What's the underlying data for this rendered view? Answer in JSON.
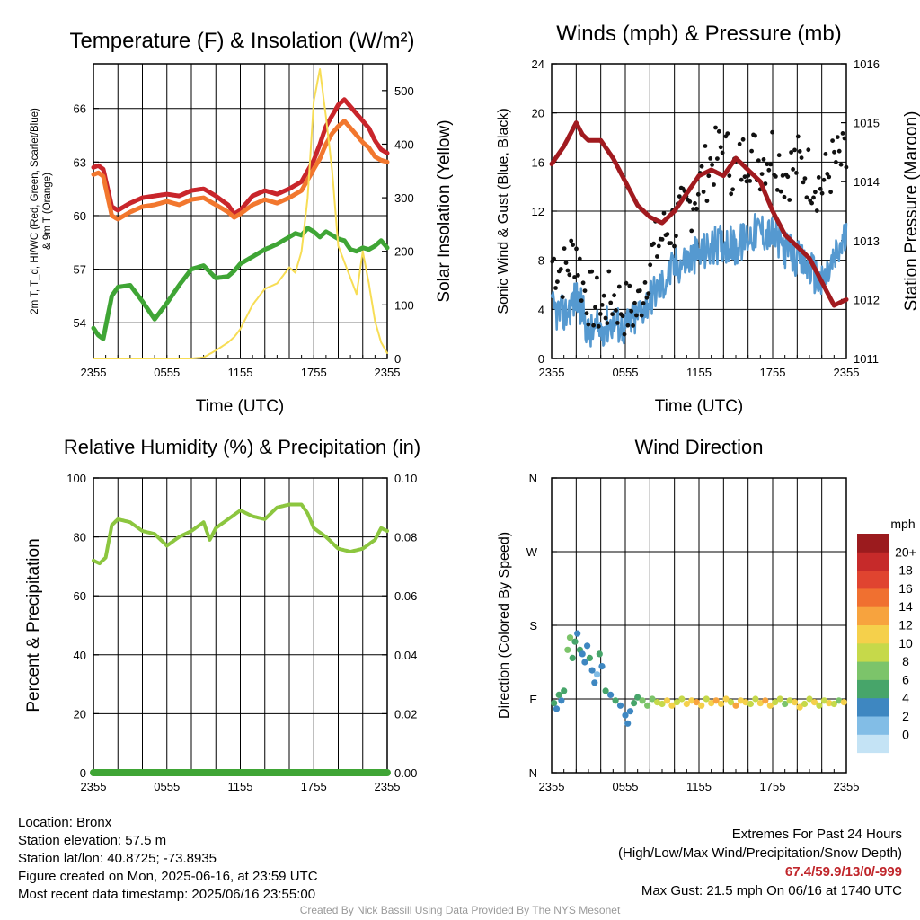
{
  "chart_data": [
    {
      "type": "line",
      "title": "Temperature (F) & Insolation (W/m²)",
      "xlabel": "Time (UTC)",
      "ylabel_left": [
        "2m T, T_d, HI/WC (Red, Green, Scarlet/Blue)",
        "& 9m T (Orange)"
      ],
      "ylabel_right": "Solar Insolation (Yellow)",
      "x_ticks": [
        "2355",
        "0555",
        "1155",
        "1755",
        "2355"
      ],
      "y_ticks_left": [
        54,
        57,
        60,
        63,
        66
      ],
      "y_ticks_right": [
        0,
        100,
        200,
        300,
        400,
        500
      ],
      "ylim_left": [
        52,
        68.5
      ],
      "ylim_right": [
        0,
        550
      ],
      "xlim_hours": [
        0,
        24
      ],
      "grid": true,
      "x_hours": [
        0,
        0.4,
        0.8,
        1.5,
        2,
        3,
        4,
        5,
        6,
        7,
        8,
        9,
        10,
        11,
        11.5,
        12,
        13,
        14,
        15,
        16,
        16.5,
        17,
        17.5,
        18,
        18.5,
        19,
        19.5,
        20,
        20.5,
        21,
        21.5,
        22,
        22.5,
        23,
        23.5,
        24
      ],
      "series": [
        {
          "name": "2m T",
          "color": "#c9252b",
          "values": [
            62.7,
            62.8,
            62.6,
            60.5,
            60.3,
            60.7,
            61.0,
            61.1,
            61.2,
            61.1,
            61.4,
            61.5,
            61.1,
            60.6,
            60.1,
            60.3,
            61.1,
            61.4,
            61.2,
            61.5,
            61.7,
            61.9,
            62.5,
            63.1,
            64.0,
            65.0,
            65.6,
            66.2,
            66.5,
            66.1,
            65.7,
            65.3,
            64.9,
            64.2,
            63.7,
            63.5
          ]
        },
        {
          "name": "9m T",
          "color": "#f2772e",
          "values": [
            62.3,
            62.4,
            62.2,
            60.0,
            59.8,
            60.2,
            60.5,
            60.6,
            60.8,
            60.6,
            60.9,
            61.0,
            60.6,
            60.2,
            59.9,
            60.1,
            60.6,
            60.9,
            60.7,
            61.0,
            61.2,
            61.4,
            62.0,
            62.6,
            63.2,
            64.0,
            64.6,
            65.0,
            65.3,
            64.9,
            64.5,
            64.1,
            63.8,
            63.3,
            63.1,
            63.0
          ]
        },
        {
          "name": "T_d",
          "color": "#3fa535",
          "values": [
            53.7,
            53.3,
            53.1,
            55.5,
            56.0,
            56.1,
            55.2,
            54.2,
            55.1,
            56.1,
            57.0,
            57.2,
            56.5,
            56.6,
            56.9,
            57.3,
            57.7,
            58.1,
            58.4,
            58.8,
            59.0,
            58.9,
            59.3,
            59.1,
            58.8,
            59.1,
            58.9,
            58.7,
            58.6,
            58.1,
            58.0,
            58.2,
            58.1,
            58.3,
            58.6,
            58.2
          ]
        },
        {
          "name": "Solar Insolation",
          "color": "#f7dd55",
          "axis": "right",
          "values": [
            0,
            0,
            0,
            0,
            0,
            0,
            0,
            0,
            0,
            0,
            0,
            2,
            15,
            30,
            40,
            55,
            100,
            130,
            140,
            170,
            160,
            200,
            300,
            480,
            540,
            450,
            350,
            210,
            180,
            150,
            120,
            200,
            140,
            70,
            30,
            10
          ]
        }
      ]
    },
    {
      "type": "scatter",
      "title": "Winds (mph) & Pressure (mb)",
      "xlabel": "Time (UTC)",
      "ylabel_left": "Sonic Wind & Gust (Blue, Black)",
      "ylabel_right": "Station Pressure (Maroon)",
      "x_ticks": [
        "2355",
        "0555",
        "1155",
        "1755",
        "2355"
      ],
      "y_ticks_left": [
        0,
        4,
        8,
        12,
        16,
        20,
        24
      ],
      "y_ticks_right": [
        1011,
        1012,
        1013,
        1014,
        1015,
        1016
      ],
      "ylim_left": [
        0,
        24
      ],
      "ylim_right": [
        1011,
        1016
      ],
      "xlim_hours": [
        0,
        24
      ],
      "grid": true,
      "x_hours": [
        0,
        1,
        2,
        2.5,
        3,
        4,
        5,
        6,
        7,
        8,
        9,
        10,
        11,
        12,
        13,
        14,
        15,
        16,
        17,
        18,
        19,
        20,
        21,
        22,
        23,
        24
      ],
      "series": [
        {
          "name": "Wind",
          "color": "#5599d0",
          "values": [
            4,
            3.5,
            5,
            4,
            2,
            2.5,
            3,
            2.5,
            3.5,
            5,
            6,
            7.5,
            8,
            8.5,
            9,
            9.5,
            9,
            10,
            10.5,
            10,
            9,
            8,
            7.5,
            6,
            8,
            10
          ]
        },
        {
          "name": "Gust",
          "color": "#111111",
          "values": [
            8,
            7,
            9,
            6,
            5,
            4,
            5,
            4,
            4,
            8,
            10,
            11,
            12,
            14,
            16,
            17,
            15,
            17,
            16,
            17,
            15,
            16,
            15,
            14,
            16,
            16
          ]
        },
        {
          "name": "Station Pressure",
          "color": "#a11a1f",
          "axis": "right",
          "values": [
            1014.3,
            1014.6,
            1015.0,
            1014.8,
            1014.7,
            1014.7,
            1014.4,
            1014.0,
            1013.6,
            1013.4,
            1013.3,
            1013.5,
            1013.8,
            1014.1,
            1014.2,
            1014.1,
            1014.4,
            1014.2,
            1014.0,
            1013.5,
            1013.1,
            1012.9,
            1012.7,
            1012.3,
            1011.9,
            1012.0
          ]
        }
      ]
    },
    {
      "type": "line",
      "title": "Relative Humidity (%) & Precipitation (in)",
      "xlabel": "",
      "ylabel_left": "Percent & Precipitation",
      "x_ticks": [
        "2355",
        "0555",
        "1155",
        "1755",
        "2355"
      ],
      "y_ticks_left": [
        0,
        20,
        40,
        60,
        80,
        100
      ],
      "y_ticks_right": [
        "0.00",
        "0.02",
        "0.04",
        "0.06",
        "0.08",
        "0.10"
      ],
      "ylim_left": [
        0,
        100
      ],
      "ylim_right": [
        0,
        0.1
      ],
      "xlim_hours": [
        0,
        24
      ],
      "grid": true,
      "x_hours": [
        0,
        0.5,
        1,
        1.5,
        2,
        3,
        4,
        5,
        6,
        7,
        8,
        9,
        9.5,
        10,
        11,
        12,
        12.5,
        13,
        14,
        15,
        16,
        17,
        17.5,
        18,
        19,
        20,
        21,
        22,
        23,
        23.5,
        24
      ],
      "series": [
        {
          "name": "Relative Humidity",
          "color": "#8cc63f",
          "values": [
            72,
            71,
            73,
            84,
            86,
            85,
            82,
            81,
            77,
            80,
            82,
            85,
            79,
            83,
            86,
            89,
            88,
            87,
            86,
            90,
            91,
            91,
            88,
            83,
            80,
            76,
            75,
            76,
            79,
            83,
            82
          ]
        },
        {
          "name": "Precipitation",
          "color": "#3fa535",
          "axis": "right",
          "values": [
            0,
            0,
            0,
            0,
            0,
            0,
            0,
            0,
            0,
            0,
            0,
            0,
            0,
            0,
            0,
            0,
            0,
            0,
            0,
            0,
            0,
            0,
            0,
            0,
            0,
            0,
            0,
            0,
            0,
            0,
            0
          ]
        }
      ]
    },
    {
      "type": "scatter",
      "title": "Wind Direction",
      "xlabel": "",
      "ylabel_left": "Direction (Colored By Speed)",
      "x_ticks": [
        "2355",
        "0555",
        "1155",
        "1755",
        "2355"
      ],
      "y_ticks_left": [
        "N",
        "E",
        "S",
        "W",
        "N"
      ],
      "ylim_degrees": [
        0,
        360
      ],
      "xlim_hours": [
        0,
        24
      ],
      "grid": true,
      "colorbar_title": "mph",
      "colorbar_labels": [
        "0",
        "2",
        "4",
        "6",
        "8",
        "10",
        "12",
        "14",
        "16",
        "18",
        "20+"
      ],
      "colorbar_colors": [
        "#c4e3f5",
        "#82bde6",
        "#3e87c1",
        "#47a56a",
        "#7cc46a",
        "#c6d94a",
        "#f5d04b",
        "#f7a33e",
        "#f07030",
        "#e04430",
        "#c62a2a",
        "#9b1b1e"
      ],
      "points": [
        [
          0.2,
          85,
          4
        ],
        [
          0.4,
          78,
          3
        ],
        [
          0.6,
          95,
          4
        ],
        [
          0.8,
          88,
          3
        ],
        [
          1.0,
          100,
          4
        ],
        [
          1.3,
          150,
          6
        ],
        [
          1.5,
          165,
          7
        ],
        [
          1.7,
          140,
          5
        ],
        [
          1.9,
          160,
          4
        ],
        [
          2.1,
          170,
          3
        ],
        [
          2.3,
          150,
          4
        ],
        [
          2.5,
          145,
          3
        ],
        [
          2.7,
          135,
          2
        ],
        [
          2.9,
          155,
          3
        ],
        [
          3.1,
          140,
          4
        ],
        [
          3.3,
          125,
          2
        ],
        [
          3.5,
          110,
          2
        ],
        [
          3.7,
          120,
          1
        ],
        [
          3.9,
          145,
          4
        ],
        [
          4.1,
          130,
          3
        ],
        [
          4.4,
          100,
          4
        ],
        [
          4.8,
          95,
          3
        ],
        [
          5.2,
          88,
          4
        ],
        [
          5.6,
          82,
          3
        ],
        [
          6.0,
          70,
          2
        ],
        [
          6.2,
          60,
          2
        ],
        [
          6.4,
          75,
          2
        ],
        [
          6.7,
          85,
          4
        ],
        [
          7.0,
          92,
          5
        ],
        [
          7.4,
          88,
          6
        ],
        [
          7.8,
          82,
          6
        ],
        [
          8.2,
          90,
          7
        ],
        [
          8.6,
          86,
          8
        ],
        [
          9.0,
          84,
          9
        ],
        [
          9.4,
          88,
          10
        ],
        [
          9.8,
          82,
          11
        ],
        [
          10.2,
          86,
          9
        ],
        [
          10.6,
          90,
          8
        ],
        [
          11.0,
          84,
          10
        ],
        [
          11.4,
          88,
          11
        ],
        [
          11.8,
          86,
          12
        ],
        [
          12.2,
          82,
          10
        ],
        [
          12.6,
          90,
          9
        ],
        [
          13.0,
          85,
          11
        ],
        [
          13.4,
          88,
          12
        ],
        [
          13.8,
          84,
          10
        ],
        [
          14.2,
          90,
          11
        ],
        [
          14.6,
          86,
          9
        ],
        [
          15.0,
          82,
          12
        ],
        [
          15.4,
          88,
          10
        ],
        [
          15.8,
          86,
          11
        ],
        [
          16.2,
          84,
          8
        ],
        [
          16.6,
          90,
          9
        ],
        [
          17.0,
          85,
          11
        ],
        [
          17.4,
          88,
          12
        ],
        [
          17.8,
          82,
          10
        ],
        [
          18.2,
          86,
          9
        ],
        [
          18.6,
          90,
          8
        ],
        [
          19.0,
          84,
          7
        ],
        [
          19.4,
          88,
          9
        ],
        [
          19.8,
          86,
          10
        ],
        [
          20.2,
          80,
          11
        ],
        [
          20.6,
          84,
          9
        ],
        [
          21.0,
          90,
          8
        ],
        [
          21.4,
          86,
          10
        ],
        [
          21.8,
          82,
          9
        ],
        [
          22.2,
          88,
          8
        ],
        [
          22.6,
          85,
          10
        ],
        [
          23.0,
          84,
          9
        ],
        [
          23.4,
          88,
          7
        ],
        [
          23.8,
          86,
          10
        ]
      ]
    }
  ],
  "footer": {
    "location": "Location: Bronx",
    "elevation": "Station elevation: 57.5 m",
    "latlon": "Station lat/lon: 40.8725; -73.8935",
    "created": "Figure created on Mon, 2025-06-16, at 23:59 UTC",
    "recent": "Most recent data timestamp: 2025/06/16 23:55:00",
    "extremes_title": "Extremes For Past 24 Hours",
    "extremes_subtitle": "(High/Low/Max Wind/Precipitation/Snow Depth)",
    "extremes_values": "67.4/59.9/13/0/-999",
    "max_gust": "Max Gust: 21.5 mph On 06/16 at 1740 UTC",
    "credit": "Created By Nick Bassill Using Data Provided By The NYS Mesonet"
  }
}
